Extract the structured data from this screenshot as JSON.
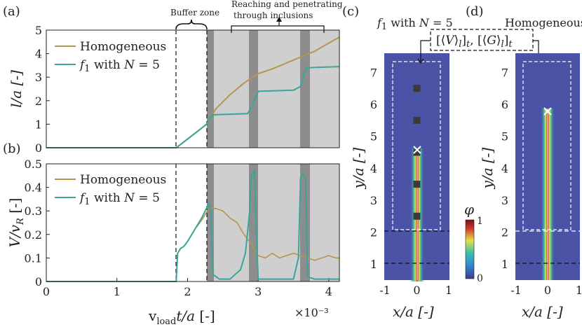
{
  "chart_data": [
    {
      "panel": "(a)",
      "type": "line",
      "ylabel": "l/a [-]",
      "ylim": [
        0,
        5
      ],
      "xlim": [
        0,
        4.15
      ],
      "yticks": [
        "0",
        "1",
        "2",
        "3",
        "4",
        "5"
      ],
      "series": [
        {
          "name": "Homogeneous",
          "color": "#b8944a",
          "x": [
            0,
            1.84,
            1.95,
            2.1,
            2.27,
            2.4,
            2.6,
            2.8,
            3.0,
            3.2,
            3.4,
            3.6,
            3.8,
            4.0,
            4.15
          ],
          "y": [
            0,
            0,
            0.25,
            0.6,
            1.0,
            1.65,
            2.25,
            2.75,
            3.15,
            3.35,
            3.6,
            3.85,
            4.1,
            4.45,
            4.7
          ]
        },
        {
          "name": "f1 with N = 5",
          "color": "#3aa598",
          "x": [
            0,
            1.84,
            1.95,
            2.1,
            2.27,
            2.35,
            2.85,
            2.92,
            3.0,
            3.5,
            3.6,
            3.68,
            4.15
          ],
          "y": [
            0,
            0,
            0.25,
            0.6,
            1.0,
            1.4,
            1.45,
            1.8,
            2.4,
            2.45,
            2.6,
            3.4,
            3.45
          ]
        }
      ]
    },
    {
      "panel": "(b)",
      "type": "line",
      "ylabel": "V/v_R [-]",
      "ylim": [
        0,
        0.5
      ],
      "xlim": [
        0,
        4.15
      ],
      "yticks": [
        "0",
        "0.1",
        "0.2",
        "0.3",
        "0.4",
        "0.5"
      ],
      "xticks": [
        "0",
        "1",
        "2",
        "3",
        "4"
      ],
      "xlabel": "v_load t/a [-]",
      "x_scale": "×10⁻³",
      "series": [
        {
          "name": "Homogeneous",
          "color": "#b8944a",
          "x": [
            0,
            1.84,
            1.86,
            1.9,
            1.95,
            2.0,
            2.1,
            2.2,
            2.3,
            2.4,
            2.5,
            2.6,
            2.7,
            2.8,
            2.9,
            3.0,
            3.1,
            3.2,
            3.3,
            3.4,
            3.5,
            3.6,
            3.7,
            3.8,
            3.9,
            4.0,
            4.1,
            4.15
          ],
          "y": [
            0,
            0,
            0.12,
            0.14,
            0.15,
            0.17,
            0.22,
            0.26,
            0.31,
            0.31,
            0.3,
            0.27,
            0.25,
            0.2,
            0.16,
            0.11,
            0.1,
            0.12,
            0.1,
            0.11,
            0.12,
            0.11,
            0.1,
            0.09,
            0.1,
            0.11,
            0.1,
            0.1
          ]
        },
        {
          "name": "f1 with N = 5",
          "color": "#3aa598",
          "x": [
            0,
            1.84,
            1.86,
            1.9,
            1.95,
            2.0,
            2.1,
            2.2,
            2.3,
            2.33,
            2.36,
            2.45,
            2.6,
            2.75,
            2.82,
            2.88,
            2.9,
            2.95,
            2.97,
            3.0,
            3.1,
            3.3,
            3.5,
            3.57,
            3.6,
            3.63,
            3.67,
            3.7,
            3.8,
            4.15
          ],
          "y": [
            0,
            0,
            0.12,
            0.14,
            0.15,
            0.17,
            0.22,
            0.27,
            0.33,
            0.3,
            0.03,
            0.01,
            0.01,
            0.05,
            0.12,
            0.3,
            0.45,
            0.47,
            0.25,
            0.01,
            0.01,
            0.01,
            0.01,
            0.1,
            0.44,
            0.46,
            0.44,
            0.02,
            0.01,
            0.01
          ]
        }
      ]
    },
    {
      "panel": "(c)",
      "type": "heatmap",
      "title": "f1 with N = 5",
      "xlabel": "x/a [-]",
      "ylabel": "y/a [-]",
      "xlim": [
        -1,
        1
      ],
      "ylim": [
        0.5,
        7.6
      ],
      "xticks": [
        "-1",
        "0",
        "1"
      ],
      "yticks": [
        "1",
        "2",
        "3",
        "4",
        "5",
        "6",
        "7"
      ],
      "inclusions_y": [
        2.5,
        3.5,
        4.5,
        5.5,
        6.5
      ],
      "crack_tip_y": 4.4
    },
    {
      "panel": "(d)",
      "type": "heatmap",
      "title": "Homogeneous",
      "xlabel": "x/a [-]",
      "ylabel": "y/a [-]",
      "xlim": [
        -1,
        1
      ],
      "ylim": [
        0.5,
        7.6
      ],
      "xticks": [
        "-1",
        "0",
        "1"
      ],
      "yticks": [
        "1",
        "2",
        "3",
        "4",
        "5",
        "6",
        "7"
      ],
      "crack_tip_y": 5.7
    }
  ],
  "annotations": {
    "buffer_zone": "Buffer zone",
    "reaching_line1": "Reaching and penetrating",
    "reaching_line2": "through inclusions",
    "average_box": "[⟨V⟩l]t, [⟨G⟩l]t"
  },
  "colorbar": {
    "label": "φ",
    "max": "1",
    "min": "0"
  },
  "legend": {
    "homogeneous": "Homogeneous",
    "f1": "f1 with N = 5"
  }
}
